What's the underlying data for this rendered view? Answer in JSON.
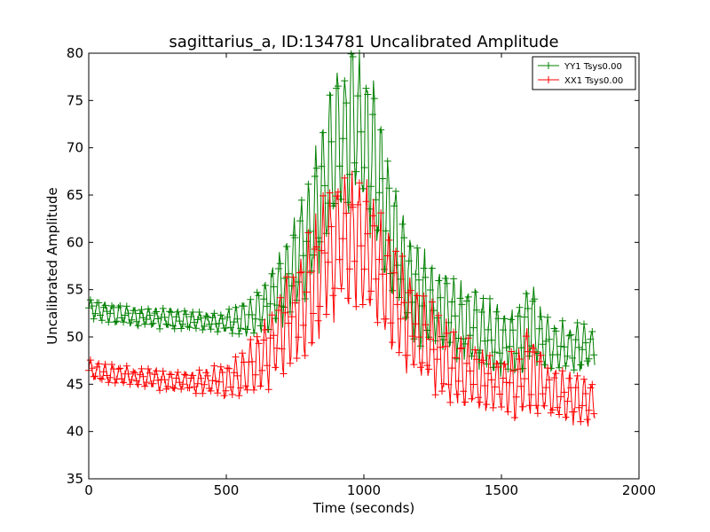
{
  "chart_data": {
    "type": "line",
    "title": "sagittarius_a, ID:134781 Uncalibrated Amplitude",
    "xlabel": "Time (seconds)",
    "ylabel": "Uncalibrated Amplitude",
    "xlim": [
      0,
      2000
    ],
    "ylim": [
      35,
      80
    ],
    "xticks": [
      "0",
      "500",
      "1000",
      "1500",
      "2000"
    ],
    "yticks": [
      "35",
      "40",
      "45",
      "50",
      "55",
      "60",
      "65",
      "70",
      "75",
      "80"
    ],
    "grid": false,
    "legend_position": "top-right",
    "marker": "+",
    "series": [
      {
        "name": "YY1 Tsys0.00",
        "color": "#008000",
        "x": [
          0,
          50,
          100,
          150,
          200,
          250,
          300,
          350,
          400,
          450,
          500,
          550,
          600,
          650,
          700,
          750,
          800,
          850,
          900,
          950,
          1000,
          1050,
          1100,
          1150,
          1200,
          1250,
          1300,
          1350,
          1400,
          1450,
          1500,
          1550,
          1580,
          1600,
          1650,
          1700,
          1750,
          1800,
          1840
        ],
        "y": [
          53,
          52.7,
          52.4,
          52.2,
          52.1,
          52,
          51.9,
          51.8,
          51.7,
          51.6,
          51.6,
          51.8,
          52.3,
          53.5,
          55.2,
          57.6,
          61,
          65.5,
          70,
          72.5,
          71.5,
          67,
          61.5,
          57,
          54.5,
          53.2,
          52.5,
          51.8,
          51,
          50.2,
          49.7,
          49.5,
          50.5,
          52,
          49.4,
          49,
          48.8,
          48.7,
          48.8
        ],
        "spread": [
          1,
          1,
          1,
          1,
          1,
          1,
          1,
          1,
          1,
          1,
          1.2,
          1.6,
          2.2,
          3,
          4,
          5,
          6,
          7.5,
          8,
          8.5,
          8.5,
          7.5,
          6.5,
          5.5,
          5,
          4.5,
          4.5,
          4,
          4,
          3.5,
          3.5,
          3.5,
          4,
          5,
          3,
          2.5,
          2.5,
          2.5,
          2
        ]
      },
      {
        "name": "XX1 Tsys0.00",
        "color": "#ff0000",
        "x": [
          0,
          50,
          100,
          150,
          200,
          250,
          300,
          350,
          400,
          450,
          500,
          550,
          600,
          650,
          700,
          750,
          800,
          850,
          900,
          950,
          1000,
          1050,
          1100,
          1150,
          1200,
          1250,
          1300,
          1350,
          1400,
          1450,
          1500,
          1550,
          1580,
          1600,
          1650,
          1700,
          1750,
          1800,
          1840
        ],
        "y": [
          46.5,
          46.2,
          46,
          45.8,
          45.6,
          45.5,
          45.4,
          45.3,
          45.3,
          45.3,
          45.5,
          46,
          47,
          48.5,
          50.5,
          52.5,
          55,
          57.5,
          59.5,
          60.5,
          59.8,
          57.5,
          54.8,
          52,
          50.2,
          48.8,
          47.5,
          46.5,
          45.8,
          45.3,
          45,
          44.8,
          45.8,
          47,
          44.8,
          44,
          43.5,
          43.2,
          43
        ],
        "spread": [
          1,
          1,
          1,
          1,
          1,
          1,
          1,
          1,
          1.2,
          1.5,
          1.8,
          2.2,
          3,
          4,
          5,
          5.5,
          6,
          6.5,
          7,
          7,
          7,
          6.5,
          6,
          5.5,
          5,
          4.5,
          4,
          3.5,
          3.5,
          3,
          3,
          3.5,
          4.5,
          5,
          3,
          2.5,
          2.5,
          2.5,
          2
        ]
      }
    ]
  }
}
